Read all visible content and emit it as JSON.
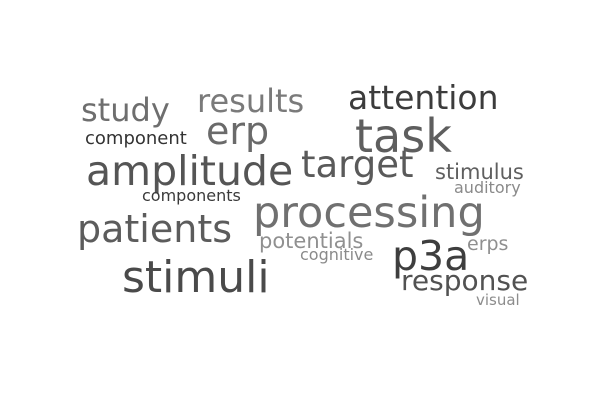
{
  "word_cloud": {
    "words": [
      {
        "text": "study"
      },
      {
        "text": "results"
      },
      {
        "text": "attention"
      },
      {
        "text": "component"
      },
      {
        "text": "erp"
      },
      {
        "text": "task"
      },
      {
        "text": "amplitude"
      },
      {
        "text": "target"
      },
      {
        "text": "stimulus"
      },
      {
        "text": "auditory"
      },
      {
        "text": "components"
      },
      {
        "text": "processing"
      },
      {
        "text": "patients"
      },
      {
        "text": "potentials"
      },
      {
        "text": "erps"
      },
      {
        "text": "cognitive"
      },
      {
        "text": "p3a"
      },
      {
        "text": "stimuli"
      },
      {
        "text": "response"
      },
      {
        "text": "visual"
      }
    ]
  }
}
